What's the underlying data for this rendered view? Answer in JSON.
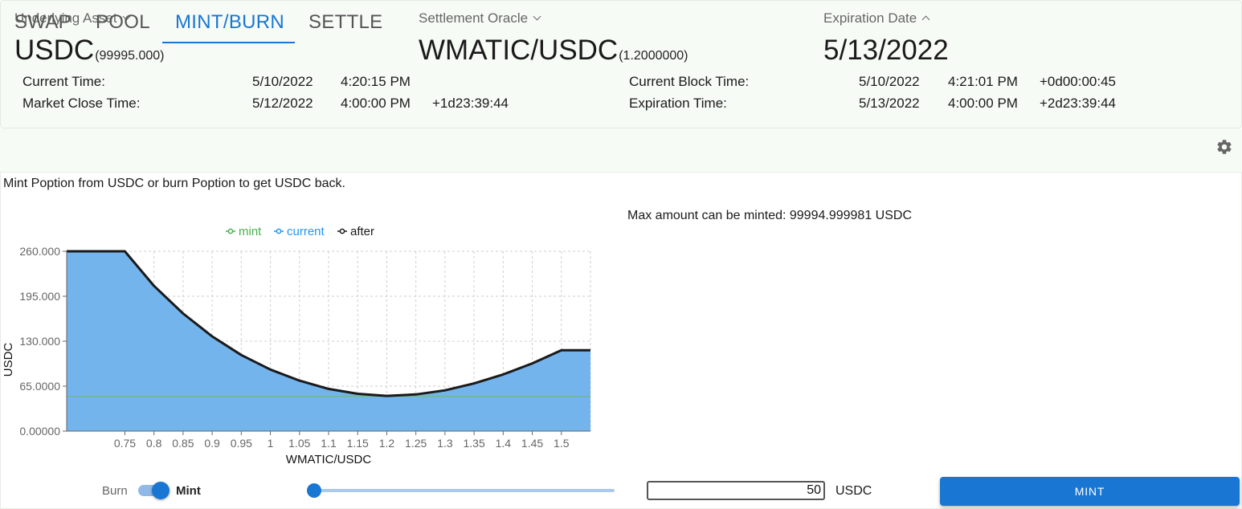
{
  "header": {
    "underlying": {
      "label": "Underlying Asset",
      "value": "USDC",
      "sub": "(99995.000)"
    },
    "oracle": {
      "label": "Settlement Oracle",
      "value": "WMATIC/USDC",
      "sub": "(1.2000000)"
    },
    "expiration": {
      "label": "Expiration Date",
      "value": "5/13/2022"
    },
    "times": {
      "current_time": {
        "label": "Current Time:",
        "date": "5/10/2022",
        "time": "4:20:15 PM"
      },
      "market_close": {
        "label": "Market Close Time:",
        "date": "5/12/2022",
        "time": "4:00:00 PM",
        "delta": "+1d23:39:44"
      },
      "current_block": {
        "label": "Current Block Time:",
        "date": "5/10/2022",
        "time": "4:21:01 PM",
        "delta": "+0d00:00:45"
      },
      "expiration_time": {
        "label": "Expiration Time:",
        "date": "5/13/2022",
        "time": "4:00:00 PM",
        "delta": "+2d23:39:44"
      }
    }
  },
  "tabs": [
    {
      "label": "SWAP",
      "active": false
    },
    {
      "label": "POOL",
      "active": false
    },
    {
      "label": "MINT/BURN",
      "active": true
    },
    {
      "label": "SETTLE",
      "active": false
    }
  ],
  "description": "Mint Poption from USDC or burn Poption to get USDC back.",
  "max_amount": "Max amount can be minted: 99994.999981 USDC",
  "controls": {
    "burn_label": "Burn",
    "mint_label": "Mint",
    "mode_is_mint": true,
    "slider_fraction": 0.0,
    "amount": "50",
    "unit": "USDC",
    "mint_button": "MINT"
  },
  "colors": {
    "accent": "#1976d2",
    "mint": "#4caf50",
    "current": "#2196f3",
    "after": "#1a1a1a"
  },
  "chart_data": {
    "type": "area",
    "xlabel": "WMATIC/USDC",
    "ylabel": "USDC",
    "xlim": [
      0.65,
      1.55
    ],
    "ylim": [
      0,
      260
    ],
    "yticks": [
      0,
      65,
      130,
      195,
      260
    ],
    "ytick_labels": [
      "0.00000",
      "65.0000",
      "130.000",
      "195.000",
      "260.000"
    ],
    "xticks": [
      0.75,
      0.8,
      0.85,
      0.9,
      0.95,
      1,
      1.05,
      1.1,
      1.15,
      1.2,
      1.25,
      1.3,
      1.35,
      1.4,
      1.45,
      1.5
    ],
    "xtick_labels": [
      "0.75",
      "0.8",
      "0.85",
      "0.9",
      "0.95",
      "1",
      "1.05",
      "1.1",
      "1.15",
      "1.2",
      "1.25",
      "1.3",
      "1.35",
      "1.4",
      "1.45",
      "1.5"
    ],
    "grid": true,
    "legend_position": "top-center",
    "x": [
      0.65,
      0.75,
      0.8,
      0.85,
      0.9,
      0.95,
      1.0,
      1.05,
      1.1,
      1.15,
      1.2,
      1.25,
      1.3,
      1.35,
      1.4,
      1.45,
      1.5,
      1.55
    ],
    "series": [
      {
        "name": "mint",
        "values": [
          50,
          50,
          50,
          50,
          50,
          50,
          50,
          50,
          50,
          50,
          50,
          50,
          50,
          50,
          50,
          50,
          50,
          50
        ]
      },
      {
        "name": "current",
        "values": [
          260,
          260,
          210,
          170,
          137,
          110,
          89,
          73,
          61,
          54,
          51,
          53,
          59,
          69,
          82,
          98,
          117,
          117
        ]
      },
      {
        "name": "after",
        "values": [
          260,
          260,
          210,
          170,
          137,
          110,
          89,
          73,
          61,
          54,
          51,
          53,
          59,
          69,
          82,
          98,
          117,
          117
        ]
      }
    ]
  }
}
